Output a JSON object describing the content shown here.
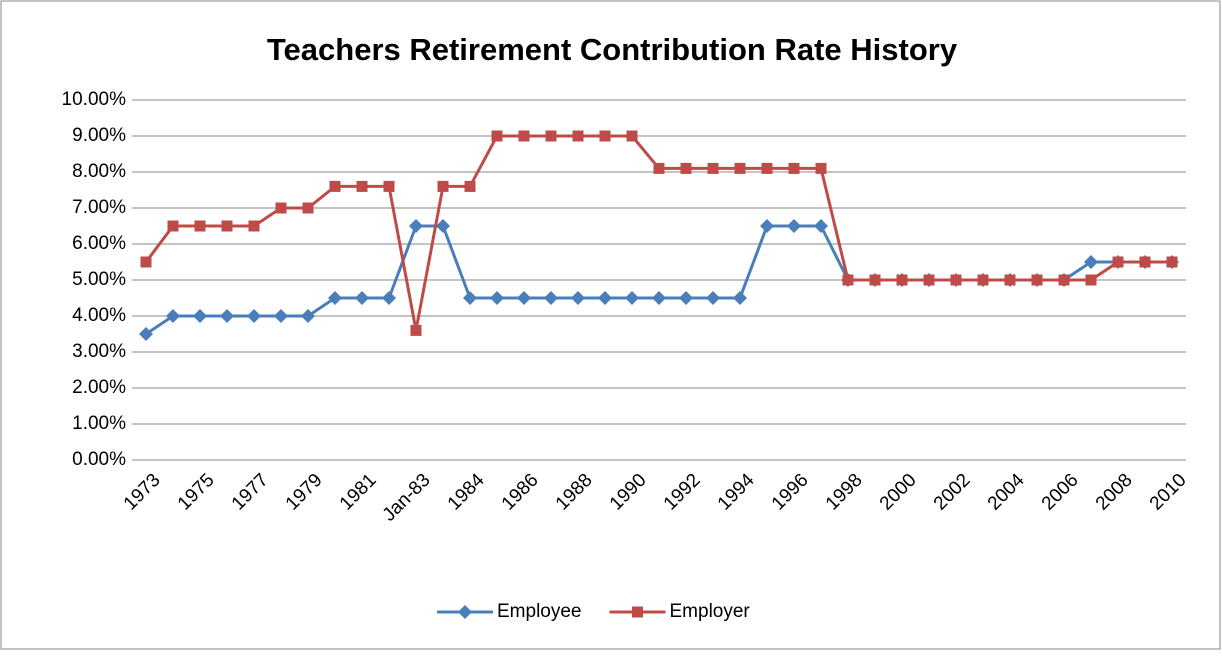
{
  "chart_data": {
    "type": "line",
    "title": "Teachers Retirement Contribution Rate History",
    "categories": [
      "1973",
      null,
      "1975",
      null,
      "1977",
      null,
      "1979",
      null,
      "1981",
      null,
      "Jan-83",
      null,
      "1984",
      null,
      "1986",
      null,
      "1988",
      null,
      "1990",
      null,
      "1992",
      null,
      "1994",
      null,
      "1996",
      null,
      "1998",
      null,
      "2000",
      null,
      "2002",
      null,
      "2004",
      null,
      "2006",
      null,
      "2008",
      null,
      "2010"
    ],
    "series": [
      {
        "name": "Employee",
        "color": "#4a7ebb",
        "marker": "diamond",
        "values": [
          3.5,
          4,
          4,
          4,
          4,
          4,
          4,
          4.5,
          4.5,
          4.5,
          6.5,
          6.5,
          4.5,
          4.5,
          4.5,
          4.5,
          4.5,
          4.5,
          4.5,
          4.5,
          4.5,
          4.5,
          4.5,
          6.5,
          6.5,
          6.5,
          5,
          5,
          5,
          5,
          5,
          5,
          5,
          5,
          5,
          5.5,
          5.5,
          5.5,
          5.5
        ]
      },
      {
        "name": "Employer",
        "color": "#be4b48",
        "marker": "square",
        "values": [
          5.5,
          6.5,
          6.5,
          6.5,
          6.5,
          7,
          7,
          7.6,
          7.6,
          7.6,
          3.6,
          7.6,
          7.6,
          9,
          9,
          9,
          9,
          9,
          9,
          8.1,
          8.1,
          8.1,
          8.1,
          8.1,
          8.1,
          8.1,
          5,
          5,
          5,
          5,
          5,
          5,
          5,
          5,
          5,
          5,
          5.5,
          5.5,
          5.5
        ]
      }
    ],
    "ylim": [
      0,
      10
    ],
    "yticks": [
      {
        "value": 0,
        "label": "0.00%"
      },
      {
        "value": 1,
        "label": "1.00%"
      },
      {
        "value": 2,
        "label": "2.00%"
      },
      {
        "value": 3,
        "label": "3.00%"
      },
      {
        "value": 4,
        "label": "4.00%"
      },
      {
        "value": 5,
        "label": "5.00%"
      },
      {
        "value": 6,
        "label": "6.00%"
      },
      {
        "value": 7,
        "label": "7.00%"
      },
      {
        "value": 8,
        "label": "8.00%"
      },
      {
        "value": 9,
        "label": "9.00%"
      },
      {
        "value": 10,
        "label": "10.00%"
      }
    ],
    "grid": true,
    "legend": "bottom"
  }
}
